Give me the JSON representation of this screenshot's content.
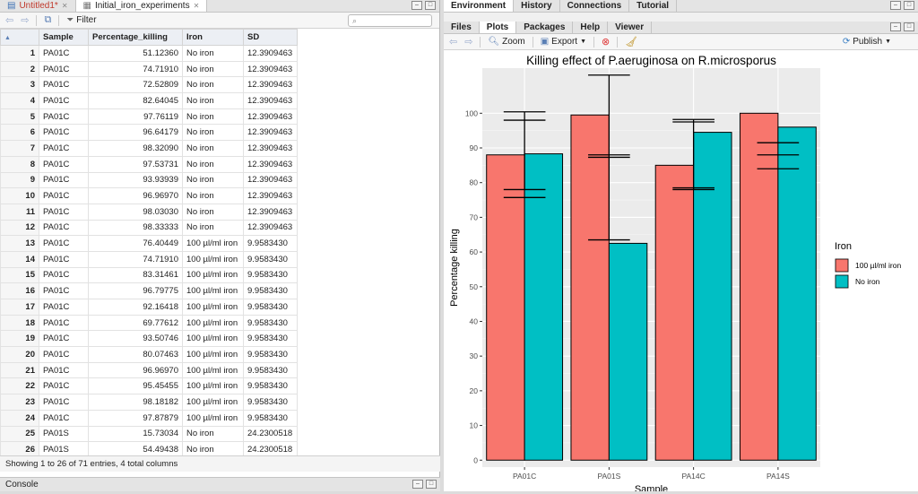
{
  "source_tabs": [
    {
      "label": "Untitled1*",
      "unsaved": true
    },
    {
      "label": "Initial_iron_experiments",
      "unsaved": false
    }
  ],
  "data_toolbar": {
    "filter_label": "Filter",
    "search_placeholder": ""
  },
  "table": {
    "columns": [
      "Sample",
      "Percentage_killing",
      "Iron",
      "SD"
    ],
    "rows": [
      [
        "1",
        "PA01C",
        "51.12360",
        "No iron",
        "12.3909463"
      ],
      [
        "2",
        "PA01C",
        "74.71910",
        "No iron",
        "12.3909463"
      ],
      [
        "3",
        "PA01C",
        "72.52809",
        "No iron",
        "12.3909463"
      ],
      [
        "4",
        "PA01C",
        "82.64045",
        "No iron",
        "12.3909463"
      ],
      [
        "5",
        "PA01C",
        "97.76119",
        "No iron",
        "12.3909463"
      ],
      [
        "6",
        "PA01C",
        "96.64179",
        "No iron",
        "12.3909463"
      ],
      [
        "7",
        "PA01C",
        "98.32090",
        "No iron",
        "12.3909463"
      ],
      [
        "8",
        "PA01C",
        "97.53731",
        "No iron",
        "12.3909463"
      ],
      [
        "9",
        "PA01C",
        "93.93939",
        "No iron",
        "12.3909463"
      ],
      [
        "10",
        "PA01C",
        "96.96970",
        "No iron",
        "12.3909463"
      ],
      [
        "11",
        "PA01C",
        "98.03030",
        "No iron",
        "12.3909463"
      ],
      [
        "12",
        "PA01C",
        "98.33333",
        "No iron",
        "12.3909463"
      ],
      [
        "13",
        "PA01C",
        "76.40449",
        "100 µl/ml iron",
        "9.9583430"
      ],
      [
        "14",
        "PA01C",
        "74.71910",
        "100 µl/ml iron",
        "9.9583430"
      ],
      [
        "15",
        "PA01C",
        "83.31461",
        "100 µl/ml iron",
        "9.9583430"
      ],
      [
        "16",
        "PA01C",
        "96.79775",
        "100 µl/ml iron",
        "9.9583430"
      ],
      [
        "17",
        "PA01C",
        "92.16418",
        "100 µl/ml iron",
        "9.9583430"
      ],
      [
        "18",
        "PA01C",
        "69.77612",
        "100 µl/ml iron",
        "9.9583430"
      ],
      [
        "19",
        "PA01C",
        "93.50746",
        "100 µl/ml iron",
        "9.9583430"
      ],
      [
        "20",
        "PA01C",
        "80.07463",
        "100 µl/ml iron",
        "9.9583430"
      ],
      [
        "21",
        "PA01C",
        "96.96970",
        "100 µl/ml iron",
        "9.9583430"
      ],
      [
        "22",
        "PA01C",
        "95.45455",
        "100 µl/ml iron",
        "9.9583430"
      ],
      [
        "23",
        "PA01C",
        "98.18182",
        "100 µl/ml iron",
        "9.9583430"
      ],
      [
        "24",
        "PA01C",
        "97.87879",
        "100 µl/ml iron",
        "9.9583430"
      ],
      [
        "25",
        "PA01S",
        "15.73034",
        "No iron",
        "24.2300518"
      ],
      [
        "26",
        "PA01S",
        "54.49438",
        "No iron",
        "24.2300518"
      ]
    ]
  },
  "status_text": "Showing 1 to 26 of 71 entries, 4 total columns",
  "console_label": "Console",
  "env_tabs": [
    "Environment",
    "History",
    "Connections",
    "Tutorial"
  ],
  "files_tabs": [
    "Files",
    "Plots",
    "Packages",
    "Help",
    "Viewer"
  ],
  "plot_toolbar": {
    "zoom": "Zoom",
    "export": "Export",
    "publish": "Publish"
  },
  "colors": {
    "iron": "#F8766D",
    "no_iron": "#00BFC4",
    "panel_bg": "#EBEBEB"
  },
  "chart_data": {
    "type": "bar",
    "title": "Killing effect of P.aeruginosa on R.microsporus",
    "xlabel": "Sample",
    "ylabel": "Percentage killing",
    "categories": [
      "PA01C",
      "PA01S",
      "PA14C",
      "PA14S"
    ],
    "ylim": [
      -2,
      113
    ],
    "yticks": [
      0,
      10,
      20,
      30,
      40,
      50,
      60,
      70,
      80,
      90,
      100
    ],
    "legend_title": "Iron",
    "legend_position": "right",
    "series": [
      {
        "name": "100 µl/ml iron",
        "color": "#F8766D",
        "values": [
          88,
          99.5,
          85,
          100
        ]
      },
      {
        "name": "No iron",
        "color": "#00BFC4",
        "values": [
          88.3,
          62.5,
          94.5,
          96
        ]
      }
    ],
    "error_lines": [
      {
        "category": "PA01C",
        "y": [
          100.4,
          98.0,
          78.0,
          75.7
        ],
        "vline": [
          78,
          100.4
        ]
      },
      {
        "category": "PA01S",
        "y": [
          111.0,
          88.0,
          87.3,
          63.5
        ],
        "vline": [
          63.5,
          111
        ]
      },
      {
        "category": "PA14C",
        "y": [
          98.2,
          97.5,
          78.5,
          78.0
        ],
        "vline": [
          78,
          98.2
        ]
      },
      {
        "category": "PA14S",
        "y": [
          91.5,
          88.0,
          84.0
        ],
        "vline": null
      }
    ]
  }
}
